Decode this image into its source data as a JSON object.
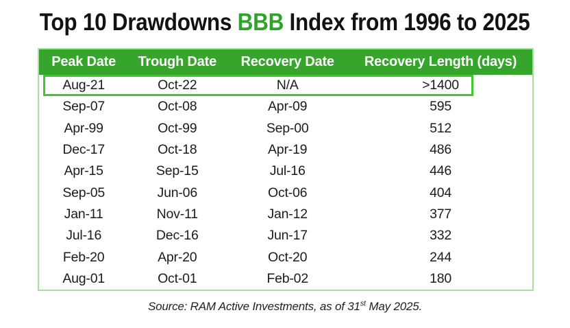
{
  "colors": {
    "header_green": "#35a52b",
    "title_accent": "#2fa42a",
    "highlight_border": "#3fc72e",
    "table_border": "#a6e09c",
    "text": "#1a1a1a"
  },
  "title": {
    "part1": "Top 10 Drawdowns ",
    "accent": "BBB",
    "part2": " Index from 1996 to 2025"
  },
  "source": {
    "prefix": "Source: RAM Active Investments, as of 31",
    "superscript": "st",
    "suffix": " May 2025."
  },
  "chart_data": {
    "type": "table",
    "title": "Top 10 Drawdowns BBB Index from 1996 to 2025",
    "columns": [
      "Peak Date",
      "Trough Date",
      "Recovery Date",
      "Recovery Length (days)"
    ],
    "rows": [
      [
        "Aug-21",
        "Oct-22",
        "N/A",
        ">1400"
      ],
      [
        "Sep-07",
        "Oct-08",
        "Apr-09",
        "595"
      ],
      [
        "Apr-99",
        "Oct-99",
        "Sep-00",
        "512"
      ],
      [
        "Dec-17",
        "Oct-18",
        "Apr-19",
        "486"
      ],
      [
        "Apr-15",
        "Sep-15",
        "Jul-16",
        "446"
      ],
      [
        "Sep-05",
        "Jun-06",
        "Oct-06",
        "404"
      ],
      [
        "Jan-11",
        "Nov-11",
        "Jan-12",
        "377"
      ],
      [
        "Jul-16",
        "Dec-16",
        "Jun-17",
        "332"
      ],
      [
        "Feb-20",
        "Apr-20",
        "Oct-20",
        "244"
      ],
      [
        "Aug-01",
        "Oct-01",
        "Feb-02",
        "180"
      ]
    ],
    "highlighted_row_index": 0,
    "source": "Source: RAM Active Investments, as of 31st May 2025.",
    "legend_position": "none",
    "grid": false
  }
}
